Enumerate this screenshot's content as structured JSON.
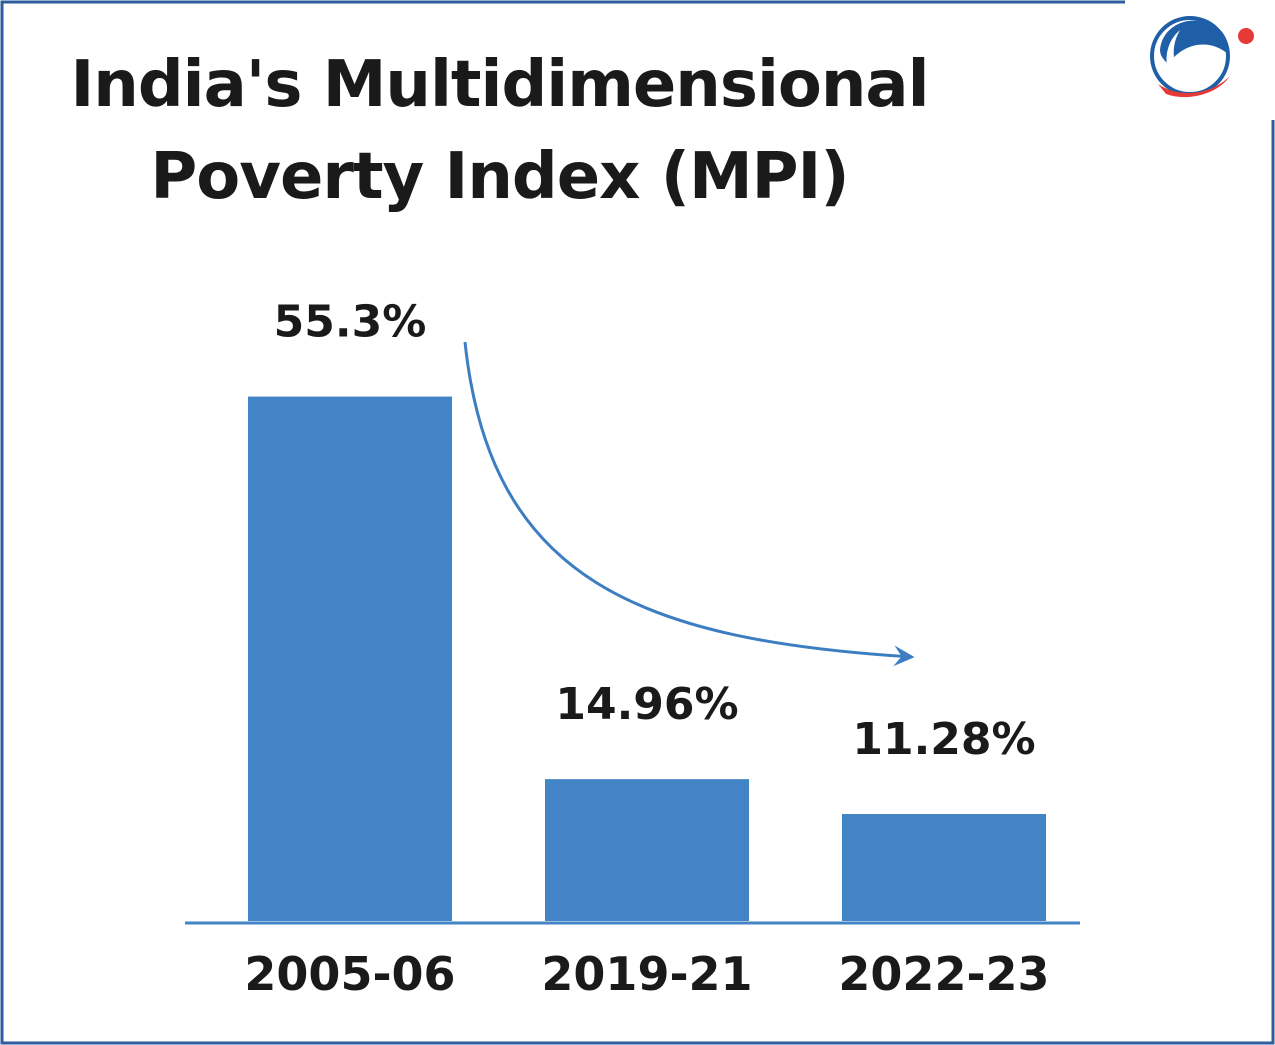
{
  "header": {
    "title_line1": "India's Multidimensional",
    "title_line2": "Poverty Index (MPI)"
  },
  "colors": {
    "bar": "#4284C5",
    "arrow": "#3D7EC2",
    "frame": "#2D5E9E",
    "text": "#1a1a1a",
    "logo_blue": "#1E5FA8",
    "logo_red": "#E53935"
  },
  "chart_data": {
    "type": "bar",
    "title": "India's Multidimensional Poverty Index (MPI)",
    "categories": [
      "2005-06",
      "2019-21",
      "2022-23"
    ],
    "values": [
      55.3,
      14.96,
      11.28
    ],
    "value_labels": [
      "55.3%",
      "14.96%",
      "11.28%"
    ],
    "xlabel": "",
    "ylabel": "",
    "ylim": [
      0,
      60
    ],
    "grid": false,
    "annotation": "downward-trend-arrow"
  }
}
